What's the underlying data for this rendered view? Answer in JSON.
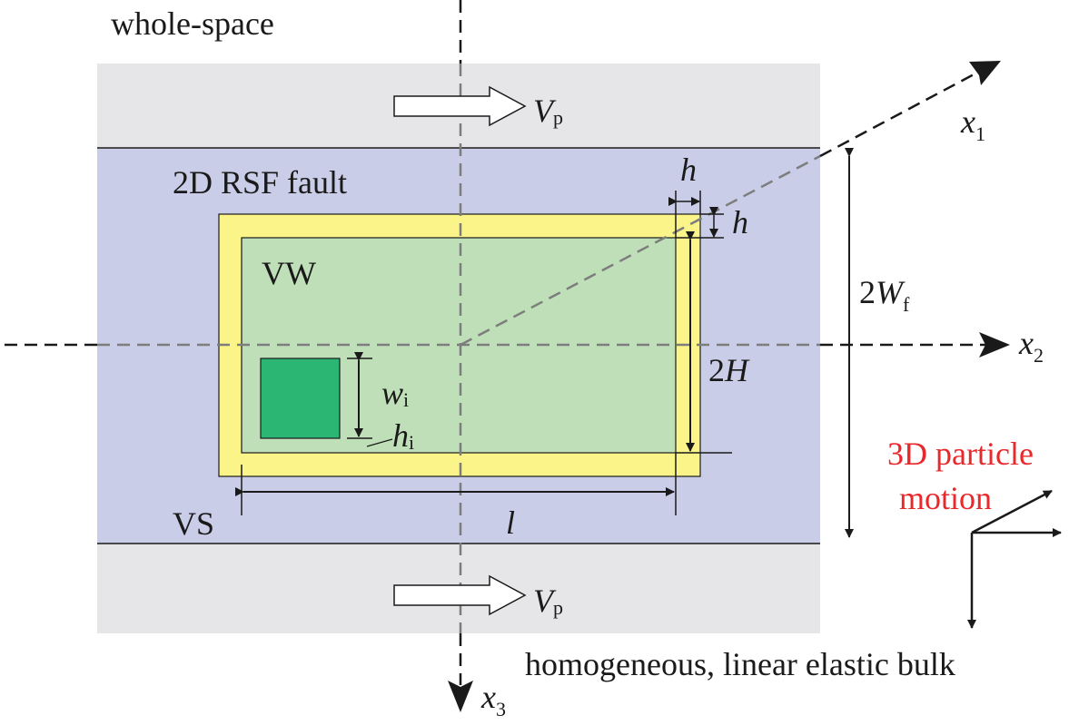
{
  "labels": {
    "top_left": "whole-space",
    "bottom_right": "homogeneous, linear elastic bulk",
    "fault": "2D RSF fault",
    "vw": "VW",
    "vs": "VS",
    "particle_line1": "3D particle",
    "particle_line2": "motion"
  },
  "symbols": {
    "vp_main": "V",
    "vp_sub": "p",
    "x1_main": "x",
    "x1_sub": "1",
    "x2_main": "x",
    "x2_sub": "2",
    "x3_main": "x",
    "x3_sub": "3",
    "h_top": "h",
    "h_right": "h",
    "wf_prefix": "2",
    "wf_main": "W",
    "wf_sub": "f",
    "twoH_prefix": "2",
    "twoH_main": "H",
    "wi_main": "w",
    "wi_sub": "i",
    "hi_main": "h",
    "hi_sub": "i",
    "l": "l"
  },
  "colors": {
    "background": "#ffffff",
    "bulk_region": "#e6e6e8",
    "fault_region": "#c9cde7",
    "vs_border": "#fbf488",
    "vw_region": "#bfdfb8",
    "inclusion": "#2bb673",
    "particle_text": "#e8282b",
    "lines": "#1a1a1a",
    "dashed_axes": "#7d7d7d"
  }
}
